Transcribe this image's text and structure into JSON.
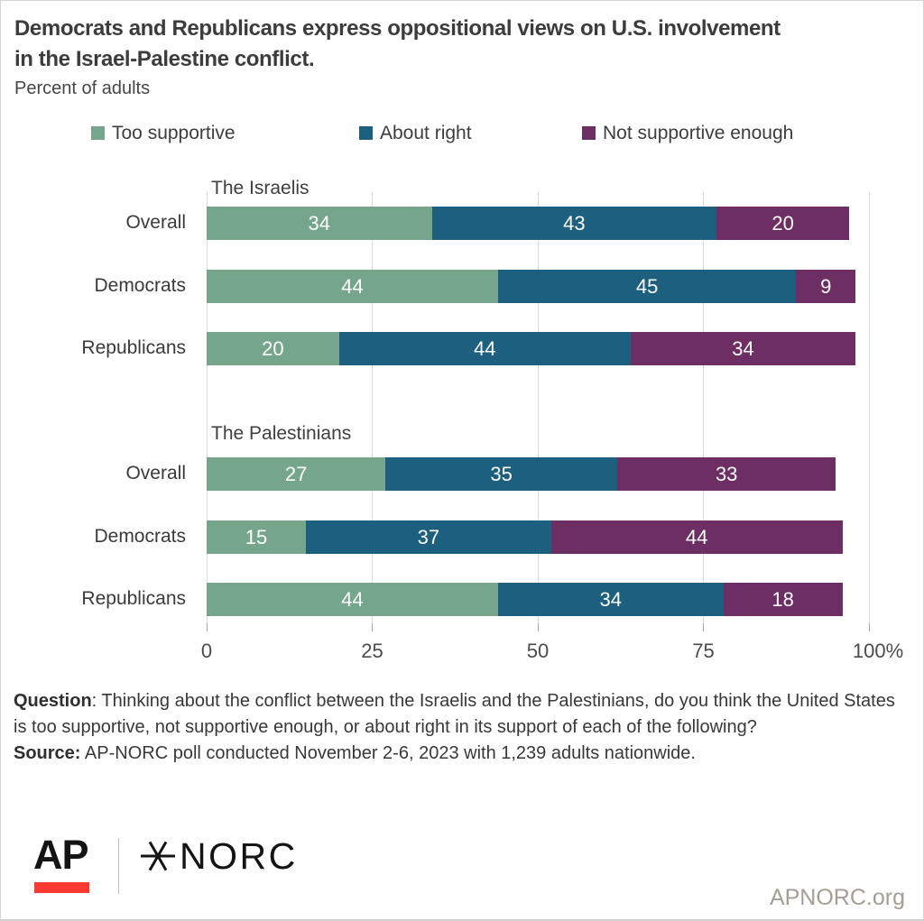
{
  "title": "Democrats and Republicans express oppositional views on U.S. involvement in the Israel-Palestine conflict.",
  "subtitle": "Percent of adults",
  "legend": [
    {
      "label": "Too supportive",
      "color": "#75a68b"
    },
    {
      "label": "About right",
      "color": "#1d5f7e"
    },
    {
      "label": "Not supportive enough",
      "color": "#6d2f63"
    }
  ],
  "chart_data": {
    "type": "bar",
    "stacked": true,
    "orientation": "horizontal",
    "unit": "percent of adults",
    "series": [
      "Too supportive",
      "About right",
      "Not supportive enough"
    ],
    "series_colors": [
      "#75a68b",
      "#1d5f7e",
      "#6d2f63"
    ],
    "groups": [
      {
        "label": "The Israelis",
        "rows": [
          {
            "category": "Overall",
            "values": [
              34,
              43,
              20
            ]
          },
          {
            "category": "Democrats",
            "values": [
              44,
              45,
              9
            ]
          },
          {
            "category": "Republicans",
            "values": [
              20,
              44,
              34
            ]
          }
        ]
      },
      {
        "label": "The Palestinians",
        "rows": [
          {
            "category": "Overall",
            "values": [
              27,
              35,
              33
            ]
          },
          {
            "category": "Democrats",
            "values": [
              15,
              37,
              44
            ]
          },
          {
            "category": "Republicans",
            "values": [
              44,
              34,
              18
            ]
          }
        ]
      }
    ],
    "xlim": [
      0,
      100
    ],
    "x_ticks": [
      {
        "value": 0,
        "label": "0"
      },
      {
        "value": 25,
        "label": "25"
      },
      {
        "value": 50,
        "label": "50"
      },
      {
        "value": 75,
        "label": "75"
      },
      {
        "value": 100,
        "label": "100%"
      }
    ],
    "grid": true,
    "legend_position": "top",
    "value_labels": "inside, white"
  },
  "notes": [
    {
      "bold": "Question",
      "text": ": Thinking about the conflict between the Israelis and the Palestinians, do you think the United States is too supportive, not supportive enough, or about right in its support of each of the following?"
    },
    {
      "bold": "Source:",
      "text": " AP-NORC poll conducted November 2-6, 2023 with 1,239 adults nationwide."
    }
  ],
  "footer": {
    "ap_logo_text": "AP",
    "norc_logo_text": "NORC",
    "website": "APNORC.org"
  },
  "colors": {
    "ap_red": "#f93a32",
    "gridline": "#dbdbdb",
    "axis_text": "#4b4b4b"
  }
}
